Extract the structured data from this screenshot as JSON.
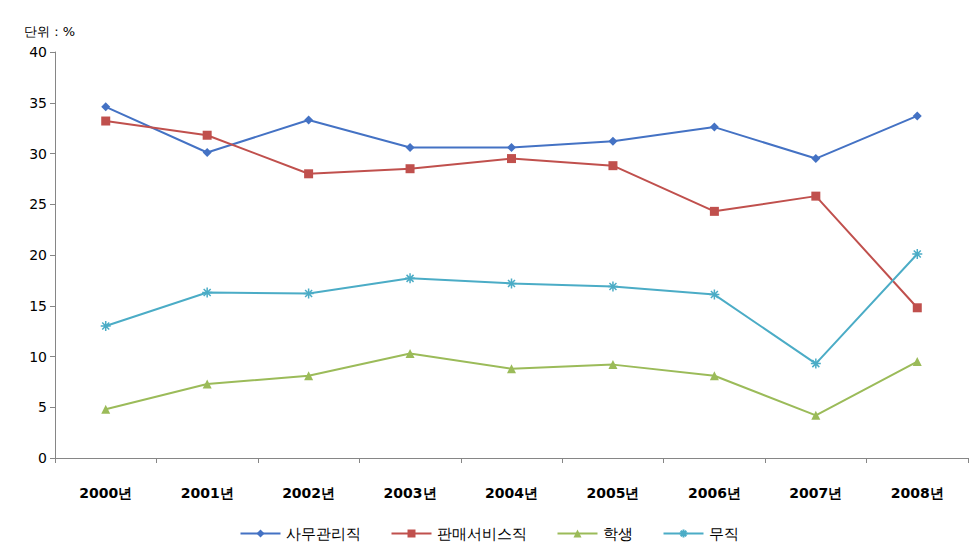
{
  "chart_data": {
    "type": "line",
    "ylabel": "단위 : %",
    "categories": [
      "2000년",
      "2001년",
      "2002년",
      "2003년",
      "2004년",
      "2005년",
      "2006년",
      "2007년",
      "2008년"
    ],
    "series": [
      {
        "name": "사무관리직",
        "color": "#4472c4",
        "marker": "diamond",
        "values": [
          34.6,
          30.1,
          33.3,
          30.6,
          30.6,
          31.2,
          32.6,
          29.5,
          33.7
        ]
      },
      {
        "name": "판매서비스직",
        "color": "#c0504d",
        "marker": "square",
        "values": [
          33.2,
          31.8,
          28.0,
          28.5,
          29.5,
          28.8,
          24.3,
          25.8,
          14.8
        ]
      },
      {
        "name": "학생",
        "color": "#9bbb59",
        "marker": "triangle",
        "values": [
          4.8,
          7.3,
          8.1,
          10.3,
          8.8,
          9.2,
          8.1,
          4.2,
          9.5
        ]
      },
      {
        "name": "무직",
        "color": "#4bacc6",
        "marker": "asterisk",
        "values": [
          13.0,
          16.3,
          16.2,
          17.7,
          17.2,
          16.9,
          16.1,
          9.3,
          20.1
        ]
      }
    ],
    "ylim": [
      0,
      40
    ],
    "yticks": [
      0,
      5,
      10,
      15,
      20,
      25,
      30,
      35,
      40
    ],
    "grid": false,
    "legend": "bottom"
  }
}
